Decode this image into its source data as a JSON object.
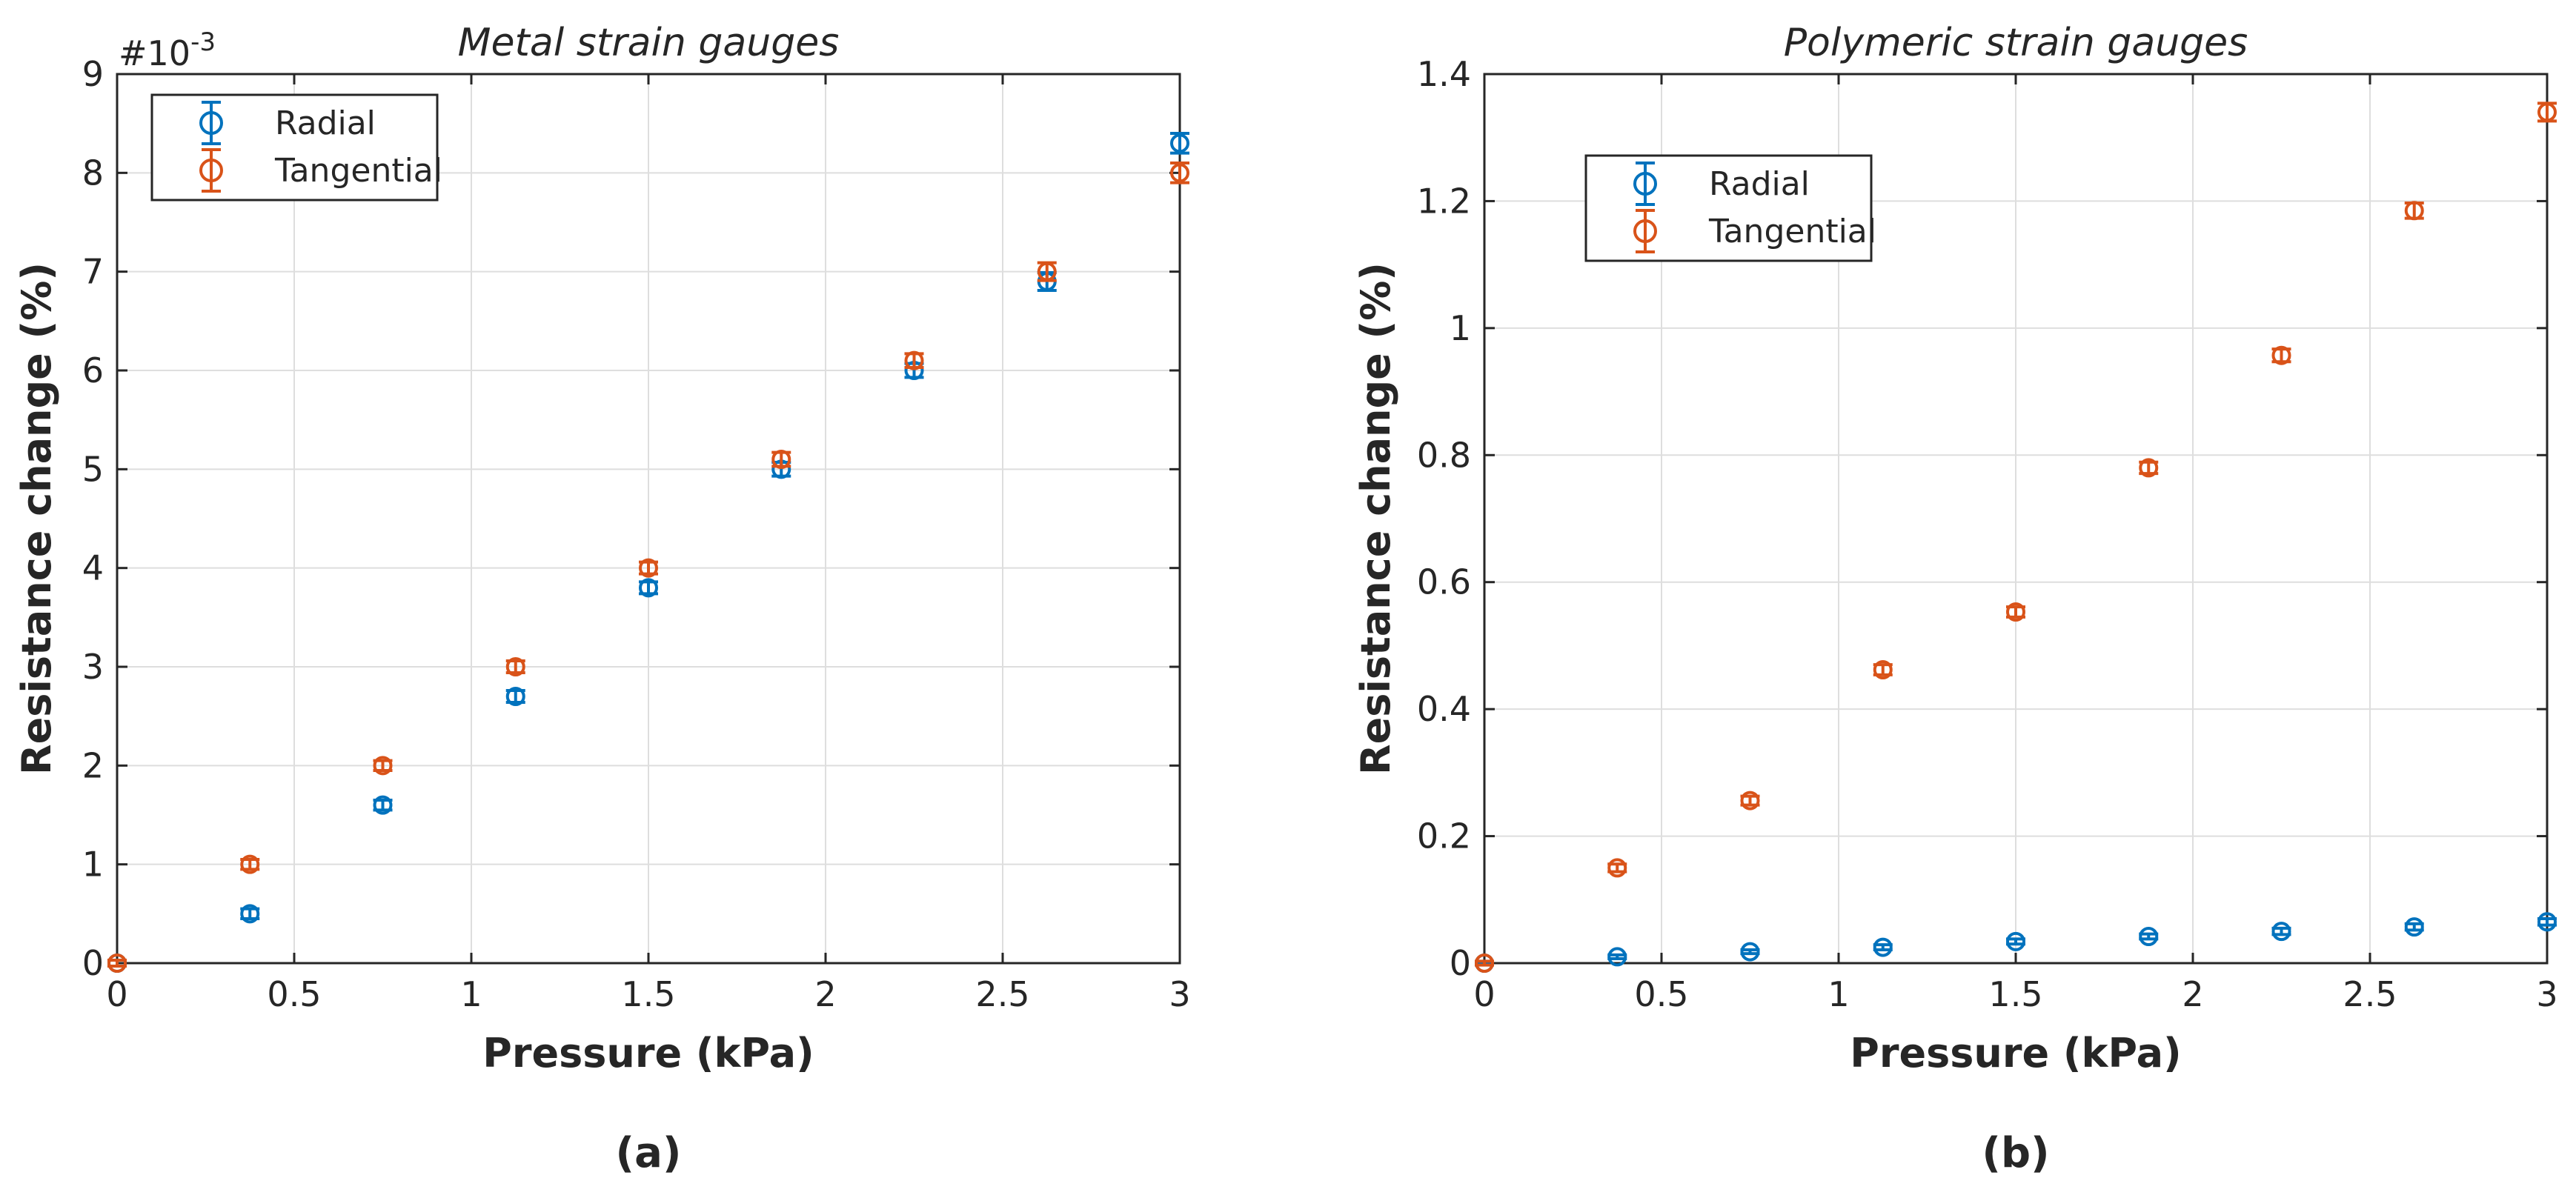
{
  "chart_data": [
    {
      "type": "scatter",
      "title": "Metal strain gauges",
      "xlabel": "Pressure (kPa)",
      "ylabel": "Resistance change (%)",
      "xlim": [
        0,
        3
      ],
      "ylim": [
        0,
        9
      ],
      "y_scale_label": "#10-3",
      "y_scale_base": "#10",
      "y_scale_exponent": "-3",
      "xticks": [
        0,
        0.5,
        1,
        1.5,
        2,
        2.5,
        3
      ],
      "xtick_labels": [
        "0",
        "0.5",
        "1",
        "1.5",
        "2",
        "2.5",
        "3"
      ],
      "yticks": [
        0,
        1,
        2,
        3,
        4,
        5,
        6,
        7,
        8,
        9
      ],
      "ytick_labels": [
        "0",
        "1",
        "2",
        "3",
        "4",
        "5",
        "6",
        "7",
        "8",
        "9"
      ],
      "grid": true,
      "legend_location": "top-left",
      "caption": "(a)",
      "x": [
        0,
        0.375,
        0.75,
        1.125,
        1.5,
        1.875,
        2.25,
        2.625,
        3
      ],
      "series": [
        {
          "name": "Radial",
          "color": "#0072BD",
          "values": [
            0,
            0.5,
            1.6,
            2.7,
            3.8,
            5.0,
            6.0,
            6.9,
            8.3
          ],
          "errors": [
            0.03,
            0.05,
            0.05,
            0.06,
            0.06,
            0.07,
            0.07,
            0.09,
            0.1
          ]
        },
        {
          "name": "Tangential",
          "color": "#D95319",
          "values": [
            0,
            1.0,
            2.0,
            3.0,
            4.0,
            5.1,
            6.1,
            7.0,
            8.0
          ],
          "errors": [
            0.03,
            0.05,
            0.05,
            0.06,
            0.06,
            0.07,
            0.07,
            0.09,
            0.1
          ]
        }
      ]
    },
    {
      "type": "scatter",
      "title": "Polymeric strain gauges",
      "xlabel": "Pressure (kPa)",
      "ylabel": "Resistance change (%)",
      "xlim": [
        0,
        3
      ],
      "ylim": [
        0,
        1.4
      ],
      "xticks": [
        0,
        0.5,
        1,
        1.5,
        2,
        2.5,
        3
      ],
      "xtick_labels": [
        "0",
        "0.5",
        "1",
        "1.5",
        "2",
        "2.5",
        "3"
      ],
      "yticks": [
        0,
        0.2,
        0.4,
        0.6,
        0.8,
        1,
        1.2,
        1.4
      ],
      "ytick_labels": [
        "0",
        "0.2",
        "0.4",
        "0.6",
        "0.8",
        "1",
        "1.2",
        "1.4"
      ],
      "grid": true,
      "legend_location": "upper-left (inset)",
      "caption": "(b)",
      "x": [
        0,
        0.375,
        0.75,
        1.125,
        1.5,
        1.875,
        2.25,
        2.625,
        3
      ],
      "series": [
        {
          "name": "Radial",
          "color": "#0072BD",
          "values": [
            0,
            0.01,
            0.018,
            0.025,
            0.034,
            0.042,
            0.05,
            0.057,
            0.065
          ],
          "errors": [
            0.002,
            0.003,
            0.003,
            0.004,
            0.004,
            0.004,
            0.005,
            0.005,
            0.005
          ]
        },
        {
          "name": "Tangential",
          "color": "#D95319",
          "values": [
            0,
            0.15,
            0.256,
            0.462,
            0.553,
            0.78,
            0.957,
            1.185,
            1.34
          ],
          "errors": [
            0.003,
            0.006,
            0.007,
            0.008,
            0.008,
            0.009,
            0.01,
            0.012,
            0.014
          ]
        }
      ]
    }
  ]
}
